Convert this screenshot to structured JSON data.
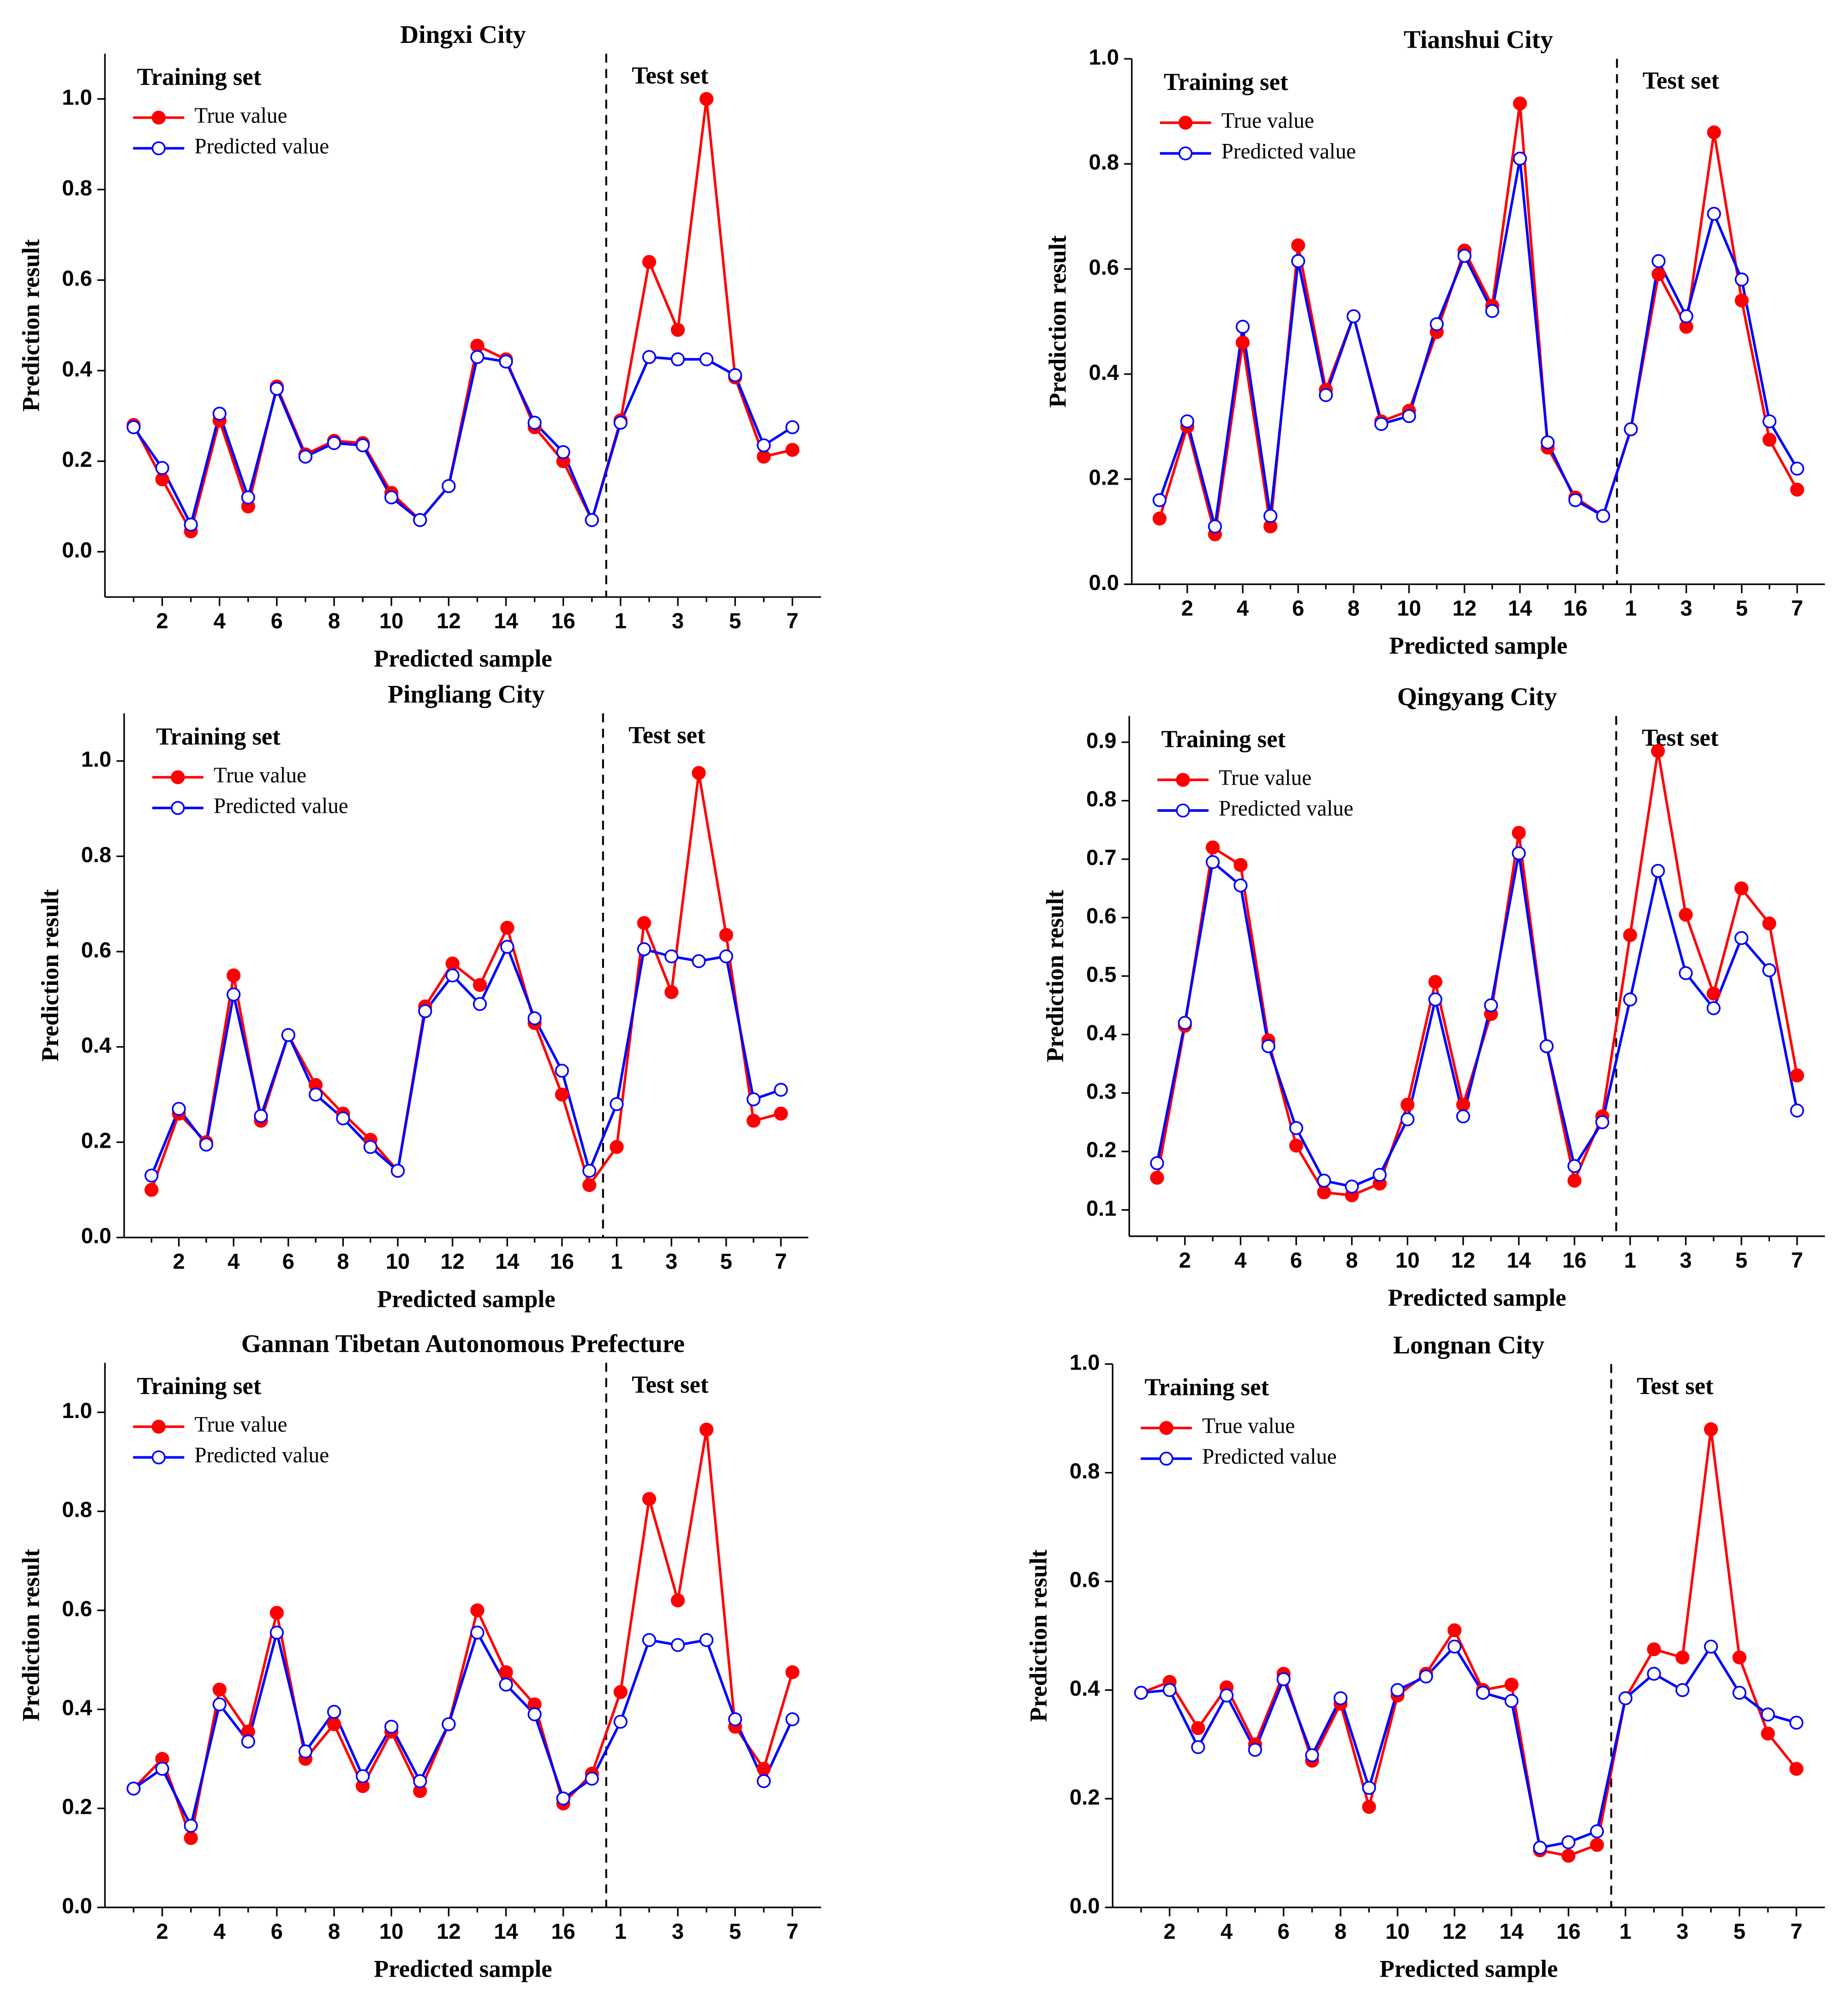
{
  "chart_data": [
    {
      "type": "line",
      "title": "Dingxi City",
      "xlabel": "Predicted sample",
      "ylabel": "Prediction result",
      "training_label": "Training set",
      "test_label": "Test set",
      "categories": [
        null,
        "2",
        null,
        "4",
        null,
        "6",
        null,
        "8",
        null,
        "10",
        null,
        "12",
        null,
        "14",
        null,
        "16",
        null,
        "1",
        null,
        "3",
        null,
        "5",
        null,
        "7"
      ],
      "series": [
        {
          "name": "True value",
          "color": "#ff0000",
          "marker": "filled",
          "values": [
            0.28,
            0.16,
            0.045,
            0.29,
            0.1,
            0.365,
            0.215,
            0.245,
            0.24,
            0.13,
            0.07,
            0.145,
            0.455,
            0.425,
            0.275,
            0.2,
            0.07,
            0.29,
            0.64,
            0.49,
            1.0,
            0.385,
            0.21,
            0.225
          ]
        },
        {
          "name": "Predicted value",
          "color": "#0000ff",
          "marker": "open",
          "values": [
            0.275,
            0.185,
            0.06,
            0.305,
            0.12,
            0.36,
            0.21,
            0.24,
            0.235,
            0.12,
            0.07,
            0.145,
            0.43,
            0.42,
            0.285,
            0.22,
            0.07,
            0.285,
            0.43,
            0.425,
            0.425,
            0.39,
            0.235,
            0.275
          ]
        }
      ],
      "ylim": [
        -0.1,
        1.1
      ],
      "yticks": [
        {
          "value": 0,
          "label": "0.0"
        },
        0.2,
        0.4,
        0.6,
        0.8,
        {
          "value": 1,
          "label": "1.0"
        }
      ]
    },
    {
      "type": "line",
      "title": "Tianshui City",
      "xlabel": "Predicted sample",
      "ylabel": "Prediction result",
      "training_label": "Training set",
      "test_label": "Test set",
      "categories": [
        null,
        "2",
        null,
        "4",
        null,
        "6",
        null,
        "8",
        null,
        "10",
        null,
        "12",
        null,
        "14",
        null,
        "16",
        null,
        "1",
        null,
        "3",
        null,
        "5",
        null,
        "7"
      ],
      "series": [
        {
          "name": "True value",
          "color": "#ff0000",
          "marker": "filled",
          "values": [
            0.125,
            0.3,
            0.095,
            0.46,
            0.11,
            0.645,
            0.37,
            0.51,
            0.31,
            0.33,
            0.48,
            0.635,
            0.53,
            0.915,
            0.26,
            0.165,
            0.13,
            0.295,
            0.59,
            0.49,
            0.86,
            0.54,
            0.275,
            0.18
          ]
        },
        {
          "name": "Predicted value",
          "color": "#0000ff",
          "marker": "open",
          "values": [
            0.16,
            0.31,
            0.11,
            0.49,
            0.13,
            0.615,
            0.36,
            0.51,
            0.305,
            0.32,
            0.495,
            0.625,
            0.52,
            0.81,
            0.27,
            0.16,
            0.13,
            0.295,
            0.615,
            0.51,
            0.705,
            0.58,
            0.31,
            0.22
          ]
        }
      ],
      "ylim": [
        0,
        1.0
      ],
      "yticks": [
        {
          "value": 0,
          "label": "0.0"
        },
        0.2,
        0.4,
        0.6,
        0.8,
        {
          "value": 1,
          "label": "1.0"
        }
      ]
    },
    {
      "type": "line",
      "title": "Pingliang City",
      "xlabel": "Predicted sample",
      "ylabel": "Prediction result",
      "training_label": "Training set",
      "test_label": "Test set",
      "categories": [
        null,
        "2",
        null,
        "4",
        null,
        "6",
        null,
        "8",
        null,
        "10",
        null,
        "12",
        null,
        "14",
        null,
        "16",
        null,
        "1",
        null,
        "3",
        null,
        "5",
        null,
        "7"
      ],
      "series": [
        {
          "name": "True value",
          "color": "#ff0000",
          "marker": "filled",
          "values": [
            0.1,
            0.26,
            0.2,
            0.55,
            0.245,
            0.425,
            0.32,
            0.26,
            0.205,
            0.14,
            0.485,
            0.575,
            0.53,
            0.65,
            0.45,
            0.3,
            0.11,
            0.19,
            0.66,
            0.515,
            0.975,
            0.635,
            0.245,
            0.26
          ]
        },
        {
          "name": "Predicted value",
          "color": "#0000ff",
          "marker": "open",
          "values": [
            0.13,
            0.27,
            0.195,
            0.51,
            0.255,
            0.425,
            0.3,
            0.25,
            0.19,
            0.14,
            0.475,
            0.55,
            0.49,
            0.61,
            0.46,
            0.35,
            0.14,
            0.28,
            0.605,
            0.59,
            0.58,
            0.59,
            0.29,
            0.31
          ]
        }
      ],
      "ylim": [
        0,
        1.1
      ],
      "yticks": [
        {
          "value": 0,
          "label": "0.0"
        },
        0.2,
        0.4,
        0.6,
        0.8,
        {
          "value": 1,
          "label": "1.0"
        }
      ]
    },
    {
      "type": "line",
      "title": "Qingyang City",
      "xlabel": "Predicted sample",
      "ylabel": "Prediction result",
      "training_label": "Training set",
      "test_label": "Test set",
      "categories": [
        null,
        "2",
        null,
        "4",
        null,
        "6",
        null,
        "8",
        null,
        "10",
        null,
        "12",
        null,
        "14",
        null,
        "16",
        null,
        "1",
        null,
        "3",
        null,
        "5",
        null,
        "7"
      ],
      "series": [
        {
          "name": "True value",
          "color": "#ff0000",
          "marker": "filled",
          "values": [
            0.155,
            0.415,
            0.72,
            0.69,
            0.39,
            0.21,
            0.13,
            0.125,
            0.145,
            0.28,
            0.49,
            0.28,
            0.435,
            0.745,
            0.38,
            0.15,
            0.26,
            0.57,
            0.885,
            0.605,
            0.47,
            0.65,
            0.59,
            0.33
          ]
        },
        {
          "name": "Predicted value",
          "color": "#0000ff",
          "marker": "open",
          "values": [
            0.18,
            0.42,
            0.695,
            0.655,
            0.38,
            0.24,
            0.15,
            0.14,
            0.16,
            0.255,
            0.46,
            0.26,
            0.45,
            0.71,
            0.38,
            0.175,
            0.25,
            0.46,
            0.68,
            0.505,
            0.445,
            0.565,
            0.51,
            0.27
          ]
        }
      ],
      "ylim": [
        0.055,
        0.945
      ],
      "yticks": [
        0.1,
        0.2,
        0.3,
        0.4,
        0.5,
        0.6,
        0.7,
        0.8,
        0.9
      ]
    },
    {
      "type": "line",
      "title": "Gannan Tibetan Autonomous Prefecture",
      "xlabel": "Predicted sample",
      "ylabel": "Prediction result",
      "training_label": "Training set",
      "test_label": "Test set",
      "categories": [
        null,
        "2",
        null,
        "4",
        null,
        "6",
        null,
        "8",
        null,
        "10",
        null,
        "12",
        null,
        "14",
        null,
        "16",
        null,
        "1",
        null,
        "3",
        null,
        "5",
        null,
        "7"
      ],
      "series": [
        {
          "name": "True value",
          "color": "#ff0000",
          "marker": "filled",
          "values": [
            0.24,
            0.3,
            0.14,
            0.44,
            0.355,
            0.595,
            0.3,
            0.37,
            0.245,
            0.355,
            0.235,
            0.37,
            0.6,
            0.475,
            0.41,
            0.21,
            0.27,
            0.435,
            0.825,
            0.62,
            0.965,
            0.365,
            0.28,
            0.475
          ]
        },
        {
          "name": "Predicted value",
          "color": "#0000ff",
          "marker": "open",
          "values": [
            0.24,
            0.28,
            0.165,
            0.41,
            0.335,
            0.555,
            0.315,
            0.395,
            0.265,
            0.365,
            0.255,
            0.37,
            0.555,
            0.45,
            0.39,
            0.22,
            0.26,
            0.375,
            0.54,
            0.53,
            0.54,
            0.38,
            0.255,
            0.38
          ]
        }
      ],
      "ylim": [
        0,
        1.1
      ],
      "yticks": [
        {
          "value": 0,
          "label": "0.0"
        },
        0.2,
        0.4,
        0.6,
        0.8,
        {
          "value": 1,
          "label": "1.0"
        }
      ]
    },
    {
      "type": "line",
      "title": "Longnan City",
      "xlabel": "Predicted sample",
      "ylabel": "Prediction result",
      "training_label": "Training set",
      "test_label": "Test set",
      "categories": [
        null,
        "2",
        null,
        "4",
        null,
        "6",
        null,
        "8",
        null,
        "10",
        null,
        "12",
        null,
        "14",
        null,
        "16",
        null,
        "1",
        null,
        "3",
        null,
        "5",
        null,
        "7"
      ],
      "series": [
        {
          "name": "True value",
          "color": "#ff0000",
          "marker": "filled",
          "values": [
            0.395,
            0.415,
            0.33,
            0.405,
            0.3,
            0.43,
            0.27,
            0.375,
            0.185,
            0.39,
            0.43,
            0.51,
            0.4,
            0.41,
            0.105,
            0.095,
            0.115,
            0.385,
            0.475,
            0.46,
            0.88,
            0.46,
            0.32,
            0.255
          ]
        },
        {
          "name": "Predicted value",
          "color": "#0000ff",
          "marker": "open",
          "values": [
            0.395,
            0.4,
            0.295,
            0.39,
            0.29,
            0.42,
            0.28,
            0.385,
            0.22,
            0.4,
            0.425,
            0.48,
            0.395,
            0.38,
            0.11,
            0.12,
            0.14,
            0.385,
            0.43,
            0.4,
            0.48,
            0.395,
            0.355,
            0.34
          ]
        }
      ],
      "ylim": [
        0,
        1.0
      ],
      "yticks": [
        {
          "value": 0,
          "label": "0.0"
        },
        0.2,
        0.4,
        0.6,
        0.8,
        {
          "value": 1,
          "label": "1.0"
        }
      ]
    }
  ]
}
